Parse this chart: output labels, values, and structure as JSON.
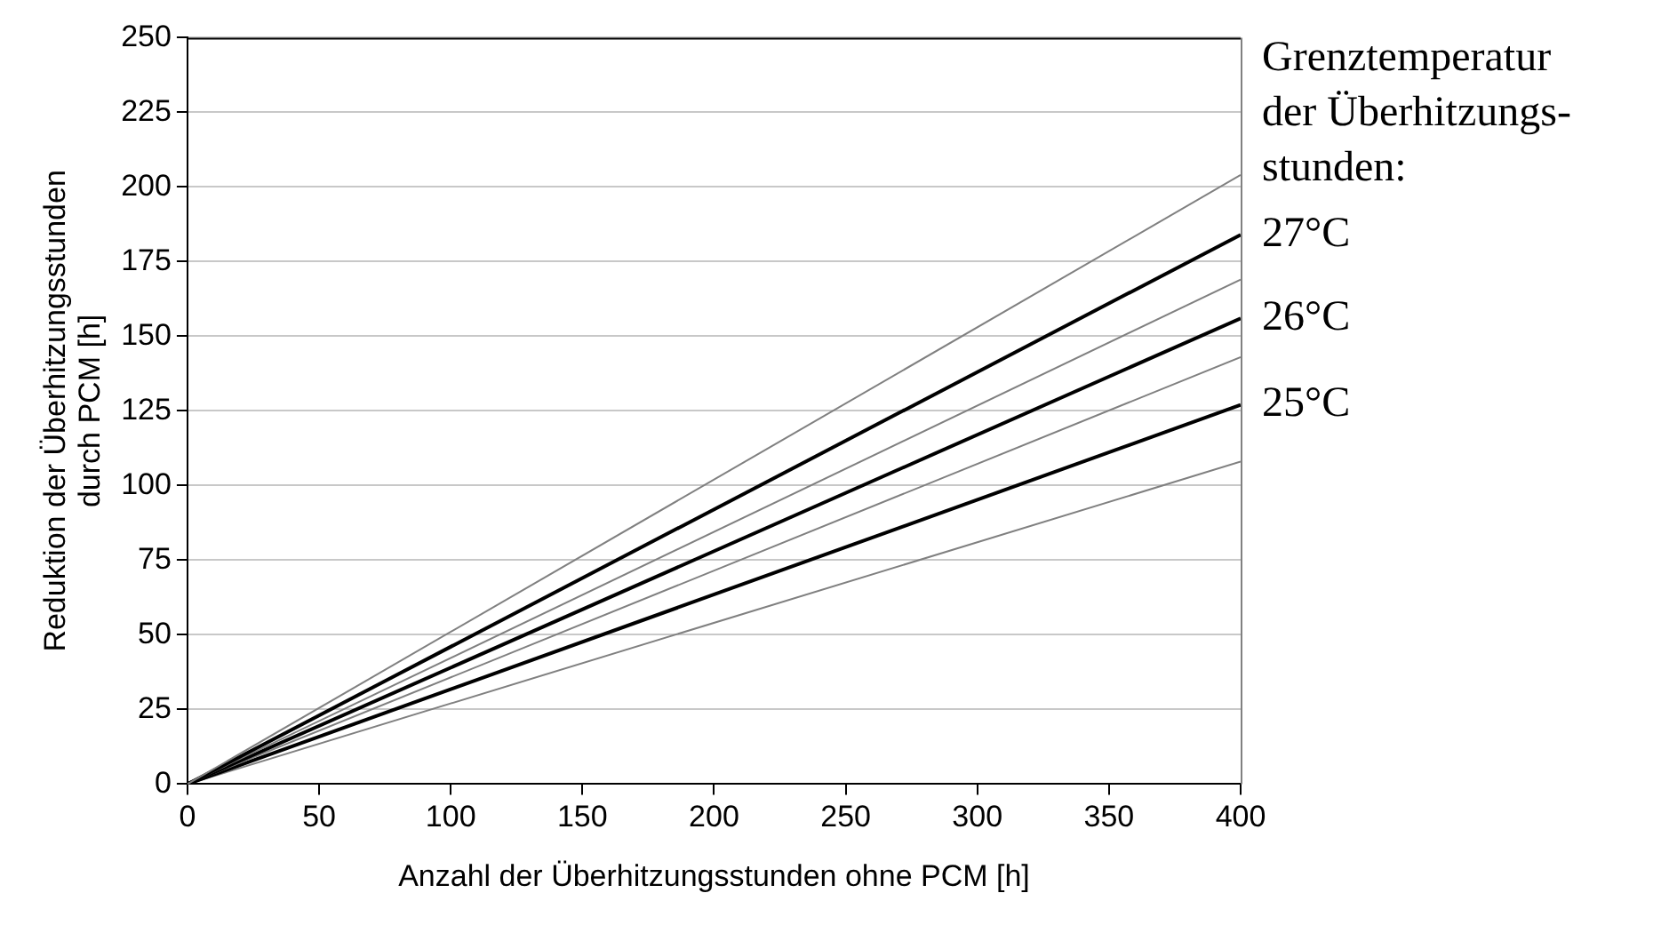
{
  "chart_data": {
    "type": "line",
    "xlabel": "Anzahl der Überhitzungsstunden ohne PCM [h]",
    "ylabel": "Reduktion der Überhitzungsstunden\ndurch PCM [h]",
    "legend_title": "Grenztemperatur\nder Überhitzungs-\nstunden:",
    "x": [
      0,
      400
    ],
    "xlim": [
      0,
      400
    ],
    "xticks": [
      0,
      50,
      100,
      150,
      200,
      250,
      300,
      350,
      400
    ],
    "ylim": [
      0,
      250
    ],
    "yticks": [
      0,
      25,
      50,
      75,
      100,
      125,
      150,
      175,
      200,
      225,
      250
    ],
    "grid": "y",
    "marker": "none",
    "line_style": "solid",
    "series": [
      {
        "color": "#808080",
        "values": [
          0,
          204
        ]
      },
      {
        "name": "27°C",
        "color": "#000000",
        "values": [
          0,
          184
        ]
      },
      {
        "color": "#808080",
        "values": [
          0,
          169
        ]
      },
      {
        "name": "26°C",
        "color": "#000000",
        "values": [
          0,
          156
        ]
      },
      {
        "color": "#808080",
        "values": [
          0,
          143
        ]
      },
      {
        "name": "25°C",
        "color": "#000000",
        "values": [
          0,
          127
        ]
      },
      {
        "color": "#808080",
        "values": [
          0,
          108
        ]
      }
    ]
  }
}
